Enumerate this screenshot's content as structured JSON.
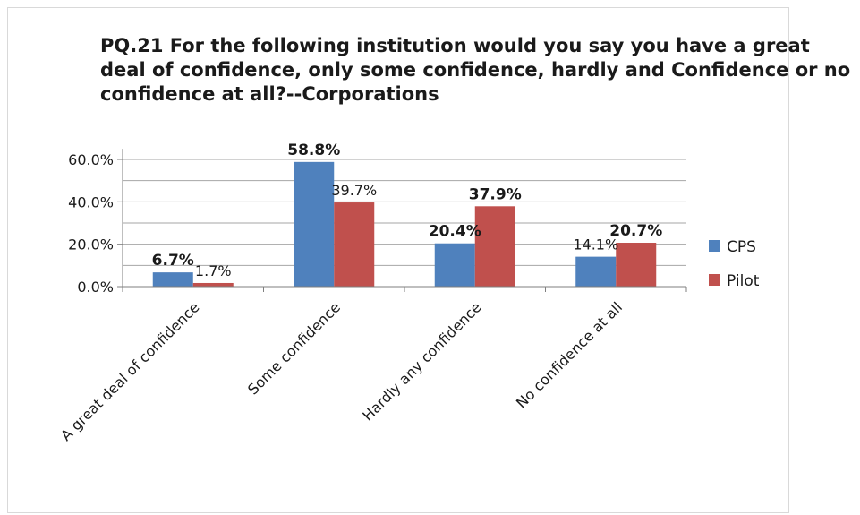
{
  "chart_data": {
    "type": "bar",
    "title": "PQ.21 For the following institution would you say you have a great deal of confidence, only some confidence, hardly and Confidence or no confidence at all?--Corporations",
    "categories": [
      "A great deal of confidence",
      "Some confidence",
      "Hardly any confidence",
      "No confidence at all"
    ],
    "series": [
      {
        "name": "CPS",
        "values": [
          6.7,
          58.8,
          20.4,
          14.1
        ],
        "color": "#4f81bd",
        "labels": [
          "6.7%",
          "58.8%",
          "20.4%",
          "14.1%"
        ],
        "label_bold": [
          true,
          true,
          true,
          false
        ]
      },
      {
        "name": "Pilot",
        "values": [
          1.7,
          39.7,
          37.9,
          20.7
        ],
        "color": "#c0504d",
        "labels": [
          "1.7%",
          "39.7%",
          "37.9%",
          "20.7%"
        ],
        "label_bold": [
          false,
          false,
          true,
          true
        ]
      }
    ],
    "yticks": [
      "0.0%",
      "20.0%",
      "40.0%",
      "60.0%"
    ],
    "ytick_values": [
      0,
      20,
      40,
      60
    ],
    "ylim": [
      0,
      60
    ],
    "grid": true,
    "legend": "right"
  }
}
